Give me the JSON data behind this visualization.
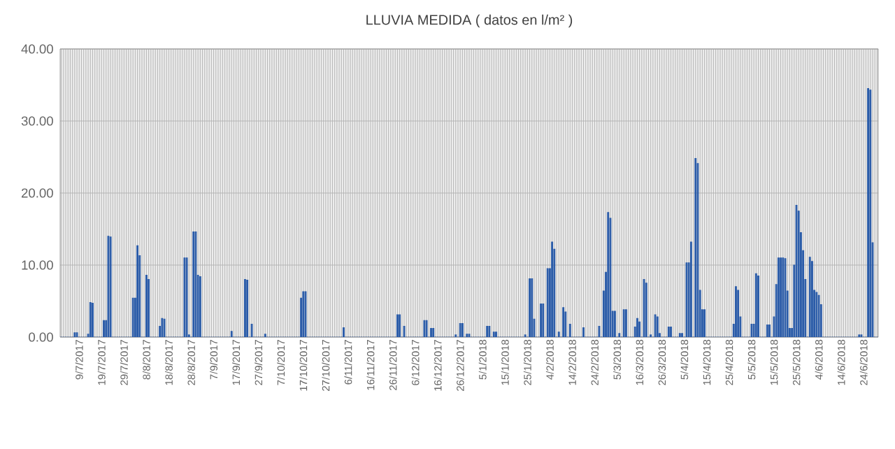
{
  "chart_data": {
    "type": "bar",
    "title": "LLUVIA MEDIDA ( datos en l/m² )",
    "categories": [
      null,
      null,
      null,
      null,
      null,
      null,
      null,
      null,
      "9/7/2017",
      null,
      null,
      null,
      null,
      null,
      null,
      null,
      null,
      null,
      "19/7/2017",
      null,
      null,
      null,
      null,
      null,
      null,
      null,
      null,
      null,
      "29/7/2017",
      null,
      null,
      null,
      null,
      null,
      null,
      null,
      null,
      null,
      "8/8/2017",
      null,
      null,
      null,
      null,
      null,
      null,
      null,
      null,
      null,
      "18/8/2017",
      null,
      null,
      null,
      null,
      null,
      null,
      null,
      null,
      null,
      "28/8/2017",
      null,
      null,
      null,
      null,
      null,
      null,
      null,
      null,
      null,
      "7/9/2017",
      null,
      null,
      null,
      null,
      null,
      null,
      null,
      null,
      null,
      "17/9/2017",
      null,
      null,
      null,
      null,
      null,
      null,
      null,
      null,
      null,
      "27/9/2017",
      null,
      null,
      null,
      null,
      null,
      null,
      null,
      null,
      null,
      "7/10/2017",
      null,
      null,
      null,
      null,
      null,
      null,
      null,
      null,
      null,
      "17/10/2017",
      null,
      null,
      null,
      null,
      null,
      null,
      null,
      null,
      null,
      "27/10/2017",
      null,
      null,
      null,
      null,
      null,
      null,
      null,
      null,
      null,
      "6/11/2017",
      null,
      null,
      null,
      null,
      null,
      null,
      null,
      null,
      null,
      "16/11/2017",
      null,
      null,
      null,
      null,
      null,
      null,
      null,
      null,
      null,
      "26/11/2017",
      null,
      null,
      null,
      null,
      null,
      null,
      null,
      null,
      null,
      "6/12/2017",
      null,
      null,
      null,
      null,
      null,
      null,
      null,
      null,
      null,
      "16/12/2017",
      null,
      null,
      null,
      null,
      null,
      null,
      null,
      null,
      null,
      "26/12/2017",
      null,
      null,
      null,
      null,
      null,
      null,
      null,
      null,
      null,
      "5/1/2018",
      null,
      null,
      null,
      null,
      null,
      null,
      null,
      null,
      null,
      "15/1/2018",
      null,
      null,
      null,
      null,
      null,
      null,
      null,
      null,
      null,
      "25/1/2018",
      null,
      null,
      null,
      null,
      null,
      null,
      null,
      null,
      null,
      "4/2/2018",
      null,
      null,
      null,
      null,
      null,
      null,
      null,
      null,
      null,
      "14/2/2018",
      null,
      null,
      null,
      null,
      null,
      null,
      null,
      null,
      null,
      "24/2/2018",
      null,
      null,
      null,
      null,
      null,
      null,
      null,
      null,
      null,
      "5/3/2018",
      null,
      null,
      null,
      null,
      null,
      null,
      null,
      null,
      null,
      "16/3/2018",
      null,
      null,
      null,
      null,
      null,
      null,
      null,
      null,
      null,
      "26/3/2018",
      null,
      null,
      null,
      null,
      null,
      null,
      null,
      null,
      null,
      "5/4/2018",
      null,
      null,
      null,
      null,
      null,
      null,
      null,
      null,
      null,
      "15/4/2018",
      null,
      null,
      null,
      null,
      null,
      null,
      null,
      null,
      null,
      "25/4/2018",
      null,
      null,
      null,
      null,
      null,
      null,
      null,
      null,
      null,
      "5/5/2018",
      null,
      null,
      null,
      null,
      null,
      null,
      null,
      null,
      null,
      "15/5/2018",
      null,
      null,
      null,
      null,
      null,
      null,
      null,
      null,
      null,
      "25/5/2018",
      null,
      null,
      null,
      null,
      null,
      null,
      null,
      null,
      null,
      "4/6/2018",
      null,
      null,
      null,
      null,
      null,
      null,
      null,
      null,
      null,
      "14/6/2018",
      null,
      null,
      null,
      null,
      null,
      null,
      null,
      null,
      null,
      "24/6/2018",
      null,
      null,
      null,
      null,
      null,
      null
    ],
    "values": [
      0,
      0,
      0,
      0,
      0,
      0,
      0.6,
      0.6,
      0,
      0,
      0,
      0,
      0.4,
      4.8,
      4.7,
      0,
      0,
      0,
      0,
      2.3,
      2.3,
      14.0,
      13.9,
      0,
      0,
      0,
      0,
      0,
      0,
      0,
      0,
      0,
      5.4,
      5.4,
      12.7,
      11.3,
      0,
      0,
      8.6,
      8.0,
      0,
      0,
      0,
      0,
      1.5,
      2.6,
      2.5,
      0,
      0,
      0,
      0,
      0,
      0,
      0,
      0,
      11.0,
      11.0,
      0.3,
      0,
      14.6,
      14.6,
      8.6,
      8.4,
      0,
      0,
      0,
      0,
      0,
      0,
      0,
      0,
      0,
      0,
      0,
      0,
      0,
      0.8,
      0,
      0,
      0,
      0,
      0,
      8.0,
      7.9,
      0,
      1.8,
      0,
      0,
      0,
      0,
      0,
      0.4,
      0,
      0,
      0,
      0,
      0,
      0,
      0,
      0,
      0,
      0,
      0,
      0,
      0,
      0,
      0,
      5.4,
      6.3,
      6.3,
      0,
      0,
      0,
      0,
      0,
      0,
      0,
      0,
      0,
      0,
      0,
      0,
      0,
      0,
      0,
      0,
      1.3,
      0,
      0,
      0,
      0,
      0,
      0,
      0,
      0,
      0,
      0,
      0,
      0,
      0,
      0,
      0,
      0,
      0,
      0,
      0,
      0,
      0,
      0,
      0,
      3.1,
      3.1,
      0,
      1.5,
      0,
      0,
      0,
      0,
      0,
      0,
      0,
      0,
      2.3,
      2.3,
      0,
      1.2,
      1.2,
      0,
      0,
      0,
      0,
      0,
      0,
      0,
      0,
      0,
      0.3,
      0,
      1.9,
      1.9,
      0,
      0.4,
      0.4,
      0,
      0,
      0,
      0,
      0,
      0,
      0,
      1.5,
      1.5,
      0,
      0.7,
      0.7,
      0,
      0,
      0,
      0,
      0,
      0,
      0,
      0,
      0,
      0,
      0,
      0,
      0.3,
      0,
      8.1,
      8.1,
      2.5,
      0,
      0,
      4.6,
      4.6,
      0,
      9.5,
      9.5,
      13.2,
      12.2,
      0,
      0.7,
      0,
      4.1,
      3.5,
      0,
      1.8,
      0,
      0,
      0,
      0,
      0,
      1.3,
      0,
      0,
      0,
      0,
      0,
      0,
      1.5,
      0,
      6.4,
      9.0,
      17.3,
      16.5,
      3.6,
      3.6,
      0,
      0.5,
      0,
      3.8,
      3.8,
      0,
      0,
      0,
      1.4,
      2.6,
      2.1,
      0,
      8.0,
      7.5,
      0,
      0.3,
      0,
      3.1,
      2.8,
      0.5,
      0,
      0,
      0,
      1.4,
      1.4,
      0,
      0,
      0,
      0.5,
      0.5,
      0,
      10.3,
      10.3,
      13.2,
      0,
      24.8,
      24.1,
      6.5,
      3.8,
      3.8,
      0,
      0,
      0,
      0,
      0,
      0,
      0,
      0,
      0,
      0,
      0,
      0,
      1.8,
      7.0,
      6.5,
      2.8,
      0,
      0,
      0,
      0,
      1.8,
      1.8,
      8.8,
      8.5,
      0,
      0,
      0,
      1.7,
      1.7,
      0,
      2.8,
      7.3,
      11.0,
      11.0,
      11.0,
      10.9,
      6.4,
      1.2,
      1.2,
      10.0,
      18.3,
      17.5,
      14.5,
      12.0,
      8.0,
      0,
      11.1,
      10.5,
      6.5,
      6.2,
      5.8,
      4.5,
      0,
      0,
      0,
      0,
      0,
      0,
      0,
      0,
      0,
      0,
      0,
      0,
      0,
      0,
      0,
      0,
      0.3,
      0.3,
      0,
      0,
      34.5,
      34.3,
      13.1,
      0,
      0
    ],
    "color": "#2a5ba8",
    "ylim": [
      0,
      40
    ],
    "yticks": [
      {
        "value": 0,
        "label": "0.00"
      },
      {
        "value": 10,
        "label": "10.00"
      },
      {
        "value": 20,
        "label": "20.00"
      },
      {
        "value": 30,
        "label": "30.00"
      },
      {
        "value": 40,
        "label": "40.00"
      }
    ],
    "grid": true
  }
}
